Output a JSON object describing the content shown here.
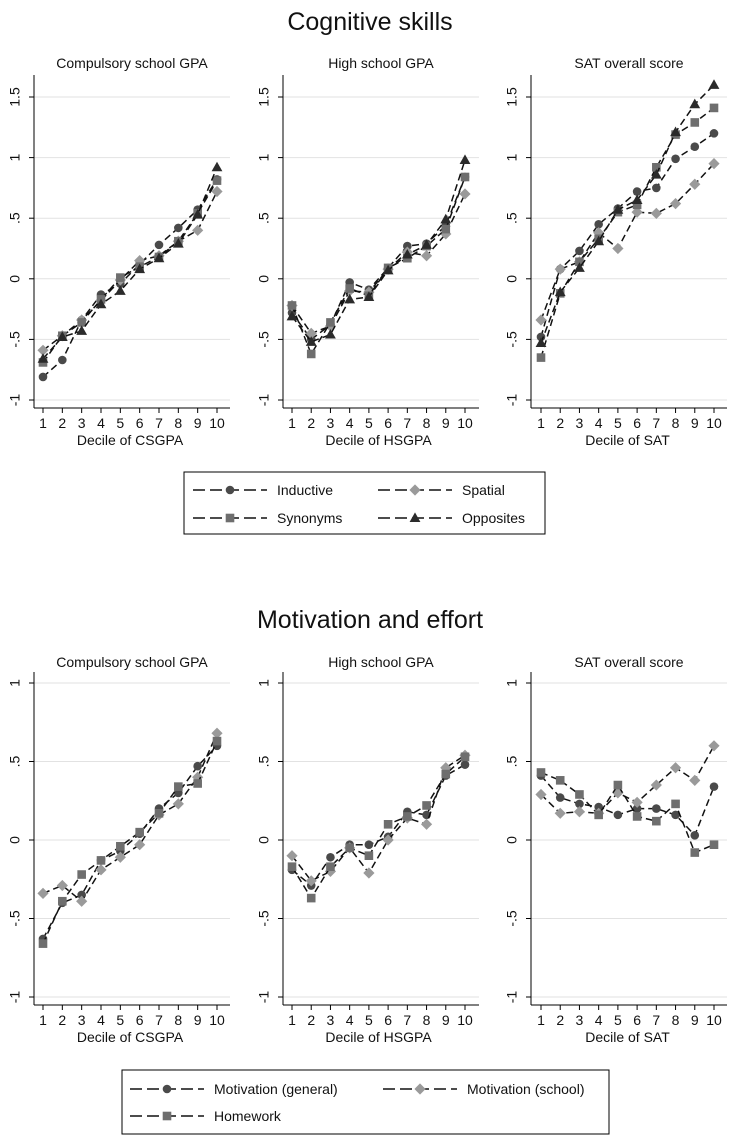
{
  "chart_data": [
    {
      "type": "line",
      "section_title": "Cognitive skills",
      "title": "Compulsory school GPA",
      "xlabel": "Decile of CSGPA",
      "ylabel": "",
      "x": [
        1,
        2,
        3,
        4,
        5,
        6,
        7,
        8,
        9,
        10
      ],
      "ylim": [
        -1,
        1.5
      ],
      "yticks": [
        -1,
        -0.5,
        0,
        0.5,
        1,
        1.5
      ],
      "ytick_labels": [
        "-1",
        "-.5",
        "0",
        ".5",
        "1",
        "1.5"
      ],
      "series": [
        {
          "name": "Inductive",
          "marker": "circle",
          "values": [
            -0.81,
            -0.67,
            -0.34,
            -0.13,
            -0.04,
            0.12,
            0.28,
            0.42,
            0.57,
            0.82
          ]
        },
        {
          "name": "Spatial",
          "marker": "diamond",
          "values": [
            -0.59,
            -0.47,
            -0.34,
            -0.18,
            -0.01,
            0.15,
            0.19,
            0.31,
            0.4,
            0.72
          ]
        },
        {
          "name": "Synonyms",
          "marker": "square",
          "values": [
            -0.69,
            -0.47,
            -0.36,
            -0.17,
            0.01,
            0.1,
            0.18,
            0.31,
            0.54,
            0.81
          ]
        },
        {
          "name": "Opposites",
          "marker": "triangle",
          "values": [
            -0.66,
            -0.48,
            -0.43,
            -0.21,
            -0.1,
            0.08,
            0.17,
            0.29,
            0.53,
            0.92
          ]
        }
      ]
    },
    {
      "type": "line",
      "section_title": "Cognitive skills",
      "title": "High school GPA",
      "xlabel": "Decile of HSGPA",
      "ylabel": "",
      "x": [
        1,
        2,
        3,
        4,
        5,
        6,
        7,
        8,
        9,
        10
      ],
      "ylim": [
        -1,
        1.5
      ],
      "yticks": [
        -1,
        -0.5,
        0,
        0.5,
        1,
        1.5
      ],
      "ytick_labels": [
        "-1",
        "-.5",
        "0",
        ".5",
        "1",
        "1.5"
      ],
      "series": [
        {
          "name": "Inductive",
          "marker": "circle",
          "values": [
            -0.28,
            -0.5,
            -0.38,
            -0.03,
            -0.09,
            0.09,
            0.27,
            0.29,
            0.44,
            0.84
          ]
        },
        {
          "name": "Spatial",
          "marker": "diamond",
          "values": [
            -0.22,
            -0.45,
            -0.39,
            -0.1,
            -0.11,
            0.08,
            0.22,
            0.19,
            0.37,
            0.7
          ]
        },
        {
          "name": "Synonyms",
          "marker": "square",
          "values": [
            -0.22,
            -0.62,
            -0.36,
            -0.08,
            -0.14,
            0.09,
            0.17,
            0.27,
            0.41,
            0.84
          ]
        },
        {
          "name": "Opposites",
          "marker": "triangle",
          "values": [
            -0.31,
            -0.52,
            -0.46,
            -0.17,
            -0.15,
            0.07,
            0.2,
            0.28,
            0.49,
            0.98
          ]
        }
      ]
    },
    {
      "type": "line",
      "section_title": "Cognitive skills",
      "title": "SAT overall score",
      "xlabel": "Decile of SAT",
      "ylabel": "",
      "x": [
        1,
        2,
        3,
        4,
        5,
        6,
        7,
        8,
        9,
        10
      ],
      "ylim": [
        -1,
        1.5
      ],
      "yticks": [
        -1,
        -0.5,
        0,
        0.5,
        1,
        1.5
      ],
      "ytick_labels": [
        "-1",
        "-.5",
        "0",
        ".5",
        "1",
        "1.5"
      ],
      "series": [
        {
          "name": "Inductive",
          "marker": "circle",
          "values": [
            -0.48,
            0.08,
            0.23,
            0.45,
            0.58,
            0.72,
            0.75,
            0.99,
            1.09,
            1.2
          ]
        },
        {
          "name": "Spatial",
          "marker": "diamond",
          "values": [
            -0.34,
            0.08,
            0.14,
            0.38,
            0.25,
            0.55,
            0.54,
            0.62,
            0.78,
            0.95
          ]
        },
        {
          "name": "Synonyms",
          "marker": "square",
          "values": [
            -0.65,
            -0.12,
            0.14,
            0.33,
            0.55,
            0.61,
            0.92,
            1.19,
            1.29,
            1.41
          ]
        },
        {
          "name": "Opposites",
          "marker": "triangle",
          "values": [
            -0.53,
            -0.11,
            0.09,
            0.31,
            0.57,
            0.65,
            0.86,
            1.21,
            1.44,
            1.6
          ]
        }
      ]
    },
    {
      "type": "line",
      "section_title": "Motivation and effort",
      "title": "Compulsory school GPA",
      "xlabel": "Decile of CSGPA",
      "ylabel": "",
      "x": [
        1,
        2,
        3,
        4,
        5,
        6,
        7,
        8,
        9,
        10
      ],
      "ylim": [
        -1,
        1
      ],
      "yticks": [
        -1,
        -0.5,
        0,
        0.5,
        1
      ],
      "ytick_labels": [
        "-1",
        "-.5",
        "0",
        ".5",
        "1"
      ],
      "series": [
        {
          "name": "Motivation (general)",
          "marker": "circle",
          "values": [
            -0.63,
            -0.4,
            -0.35,
            -0.13,
            -0.07,
            0.04,
            0.2,
            0.3,
            0.47,
            0.6
          ]
        },
        {
          "name": "Motivation (school)",
          "marker": "diamond",
          "values": [
            -0.34,
            -0.29,
            -0.39,
            -0.19,
            -0.11,
            -0.03,
            0.16,
            0.23,
            0.4,
            0.68
          ]
        },
        {
          "name": "Homework",
          "marker": "square",
          "values": [
            -0.66,
            -0.39,
            -0.22,
            -0.13,
            -0.04,
            0.05,
            0.17,
            0.34,
            0.36,
            0.63
          ]
        }
      ]
    },
    {
      "type": "line",
      "section_title": "Motivation and effort",
      "title": "High school GPA",
      "xlabel": "Decile of HSGPA",
      "ylabel": "",
      "x": [
        1,
        2,
        3,
        4,
        5,
        6,
        7,
        8,
        9,
        10
      ],
      "ylim": [
        -1,
        1
      ],
      "yticks": [
        -1,
        -0.5,
        0,
        0.5,
        1
      ],
      "ytick_labels": [
        "-1",
        "-.5",
        "0",
        ".5",
        "1"
      ],
      "series": [
        {
          "name": "Motivation (general)",
          "marker": "circle",
          "values": [
            -0.19,
            -0.29,
            -0.11,
            -0.03,
            -0.03,
            0.02,
            0.18,
            0.16,
            0.41,
            0.48
          ]
        },
        {
          "name": "Motivation (school)",
          "marker": "diamond",
          "values": [
            -0.1,
            -0.26,
            -0.2,
            -0.05,
            -0.21,
            0.0,
            0.14,
            0.1,
            0.46,
            0.54
          ]
        },
        {
          "name": "Homework",
          "marker": "square",
          "values": [
            -0.17,
            -0.37,
            -0.17,
            -0.05,
            -0.1,
            0.1,
            0.15,
            0.22,
            0.42,
            0.53
          ]
        }
      ]
    },
    {
      "type": "line",
      "section_title": "Motivation and effort",
      "title": "SAT overall score",
      "xlabel": "Decile of SAT",
      "ylabel": "",
      "x": [
        1,
        2,
        3,
        4,
        5,
        6,
        7,
        8,
        9,
        10
      ],
      "ylim": [
        -1,
        1
      ],
      "yticks": [
        -1,
        -0.5,
        0,
        0.5,
        1
      ],
      "ytick_labels": [
        "-1",
        "-.5",
        "0",
        ".5",
        "1"
      ],
      "series": [
        {
          "name": "Motivation (general)",
          "marker": "circle",
          "values": [
            0.41,
            0.27,
            0.23,
            0.21,
            0.16,
            0.2,
            0.2,
            0.16,
            0.03,
            0.34
          ]
        },
        {
          "name": "Motivation (school)",
          "marker": "diamond",
          "values": [
            0.29,
            0.17,
            0.18,
            0.17,
            0.3,
            0.24,
            0.35,
            0.46,
            0.38,
            0.6
          ]
        },
        {
          "name": "Homework",
          "marker": "square",
          "values": [
            0.43,
            0.38,
            0.29,
            0.16,
            0.35,
            0.15,
            0.12,
            0.23,
            -0.08,
            -0.03
          ]
        }
      ]
    }
  ],
  "sections": [
    {
      "title": "Cognitive skills"
    },
    {
      "title": "Motivation and effort"
    }
  ],
  "legends": [
    {
      "entries": [
        {
          "label": "Inductive",
          "marker": "circle"
        },
        {
          "label": "Spatial",
          "marker": "diamond"
        },
        {
          "label": "Synonyms",
          "marker": "square"
        },
        {
          "label": "Opposites",
          "marker": "triangle"
        }
      ]
    },
    {
      "entries": [
        {
          "label": "Motivation (general)",
          "marker": "circle"
        },
        {
          "label": "Motivation (school)",
          "marker": "diamond"
        },
        {
          "label": "Homework",
          "marker": "square"
        }
      ]
    }
  ],
  "colors": {
    "circle": "#4a4a4a",
    "diamond": "#9a9a9a",
    "square": "#6e6e6e",
    "triangle": "#2b2b2b",
    "line": "#111111",
    "grid": "#e2e2e2",
    "axis": "#000000"
  }
}
